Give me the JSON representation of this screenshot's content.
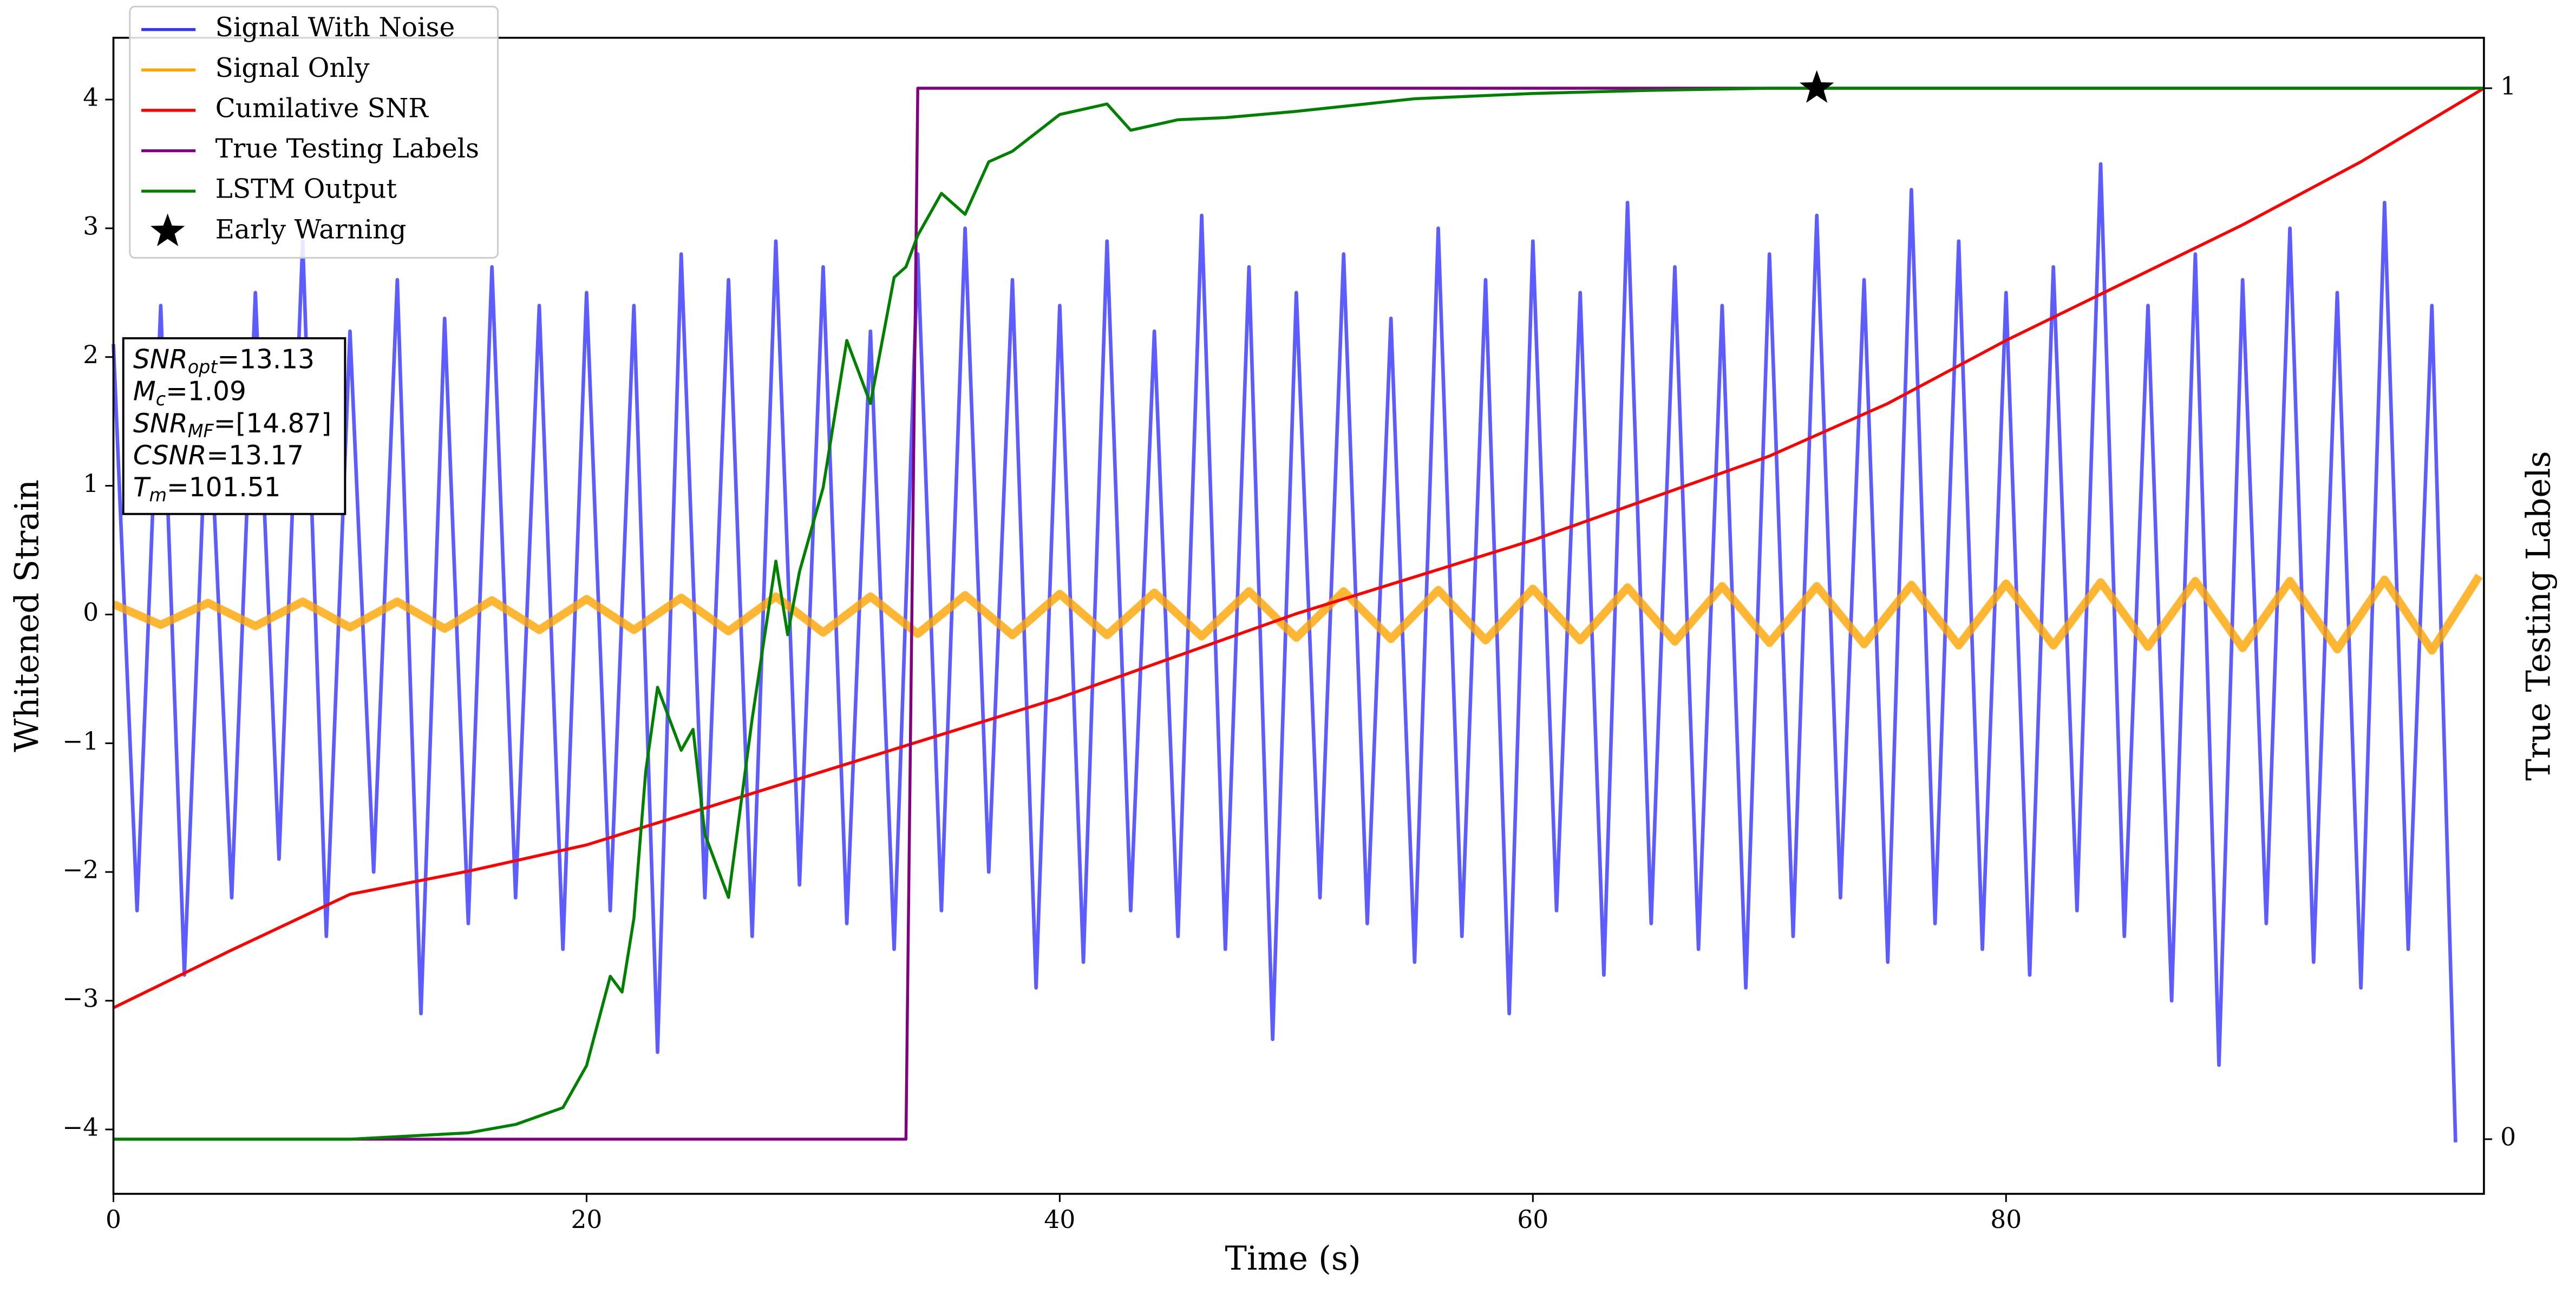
{
  "chart_data": {
    "type": "line",
    "xlabel": "Time (s)",
    "ylabel": "Whitened Strain",
    "y2label": "True Testing Labels",
    "xlim": [
      0,
      100.2
    ],
    "ylim": [
      -4.5,
      4.48
    ],
    "y2lim": [
      -0.052,
      1.048
    ],
    "xticks": [
      0,
      20,
      40,
      60,
      80
    ],
    "yticks": [
      {
        "value": -4,
        "label": "−4"
      },
      {
        "value": -3,
        "label": "−3"
      },
      {
        "value": -2,
        "label": "−2"
      },
      {
        "value": -1,
        "label": "−1"
      },
      0,
      1,
      2,
      3,
      4
    ],
    "y2ticks": [
      0,
      1
    ],
    "legend": "upper left",
    "series": [
      {
        "name": "Signal With Noise",
        "color": "#3333ff",
        "axis": "y",
        "x": [
          0,
          1,
          2,
          3,
          4,
          5,
          6,
          7,
          8,
          9,
          10,
          11,
          12,
          13,
          14,
          15,
          16,
          17,
          18,
          19,
          20,
          21,
          22,
          23,
          24,
          25,
          26,
          27,
          28,
          29,
          30,
          31,
          32,
          33,
          34,
          35,
          36,
          37,
          38,
          39,
          40,
          41,
          42,
          43,
          44,
          45,
          46,
          47,
          48,
          49,
          50,
          51,
          52,
          53,
          54,
          55,
          56,
          57,
          58,
          59,
          60,
          61,
          62,
          63,
          64,
          65,
          66,
          67,
          68,
          69,
          70,
          71,
          72,
          73,
          74,
          75,
          76,
          77,
          78,
          79,
          80,
          81,
          82,
          83,
          84,
          85,
          86,
          87,
          88,
          89,
          90,
          91,
          92,
          93,
          94,
          95,
          96,
          97,
          98,
          99
        ],
        "values": [
          2.1,
          -2.3,
          2.4,
          -2.8,
          1.9,
          -2.2,
          2.5,
          -1.9,
          2.9,
          -2.5,
          2.2,
          -2.0,
          2.6,
          -3.1,
          2.3,
          -2.4,
          2.7,
          -2.2,
          2.4,
          -2.6,
          2.5,
          -2.3,
          2.4,
          -3.4,
          2.8,
          -2.2,
          2.6,
          -2.5,
          2.9,
          -2.1,
          2.7,
          -2.4,
          2.2,
          -2.6,
          2.8,
          -2.3,
          3.0,
          -2.0,
          2.6,
          -2.9,
          2.4,
          -2.7,
          2.9,
          -2.3,
          2.2,
          -2.5,
          3.1,
          -2.6,
          2.7,
          -3.3,
          2.5,
          -2.2,
          2.8,
          -2.4,
          2.3,
          -2.7,
          3.0,
          -2.5,
          2.6,
          -3.1,
          2.9,
          -2.3,
          2.5,
          -2.8,
          3.2,
          -2.4,
          2.7,
          -2.6,
          2.4,
          -2.9,
          2.8,
          -2.5,
          3.1,
          -2.2,
          2.6,
          -2.7,
          3.3,
          -2.4,
          2.9,
          -2.6,
          2.5,
          -2.8,
          2.7,
          -2.3,
          3.5,
          -2.5,
          2.4,
          -3.0,
          2.8,
          -3.5,
          2.6,
          -2.4,
          3.0,
          -2.7,
          2.5,
          -2.9,
          3.2,
          -2.6,
          2.4,
          -4.1
        ]
      },
      {
        "name": "Signal Only",
        "color": "#ffa500",
        "axis": "y",
        "x": [
          0,
          2,
          4,
          6,
          8,
          10,
          12,
          14,
          16,
          18,
          20,
          22,
          24,
          26,
          28,
          30,
          32,
          34,
          36,
          38,
          40,
          42,
          44,
          46,
          48,
          50,
          52,
          54,
          56,
          58,
          60,
          62,
          64,
          66,
          68,
          70,
          72,
          74,
          76,
          78,
          80,
          82,
          84,
          86,
          88,
          90,
          92,
          94,
          96,
          98,
          100
        ],
        "values": [
          0.08,
          -0.08,
          0.09,
          -0.09,
          0.1,
          -0.1,
          0.1,
          -0.11,
          0.11,
          -0.12,
          0.12,
          -0.12,
          0.13,
          -0.13,
          0.14,
          -0.14,
          0.14,
          -0.15,
          0.15,
          -0.16,
          0.16,
          -0.16,
          0.17,
          -0.17,
          0.18,
          -0.18,
          0.18,
          -0.19,
          0.19,
          -0.2,
          0.2,
          -0.2,
          0.21,
          -0.21,
          0.22,
          -0.22,
          0.22,
          -0.23,
          0.23,
          -0.24,
          0.24,
          -0.24,
          0.25,
          -0.25,
          0.26,
          -0.26,
          0.26,
          -0.27,
          0.27,
          -0.28,
          0.3
        ]
      },
      {
        "name": "Cumilative SNR",
        "color": "#ff0000",
        "axis": "y2",
        "x": [
          0,
          5,
          10,
          15,
          20,
          25,
          30,
          35,
          40,
          45,
          50,
          55,
          60,
          65,
          70,
          75,
          80,
          85,
          90,
          95,
          100.2
        ],
        "values": [
          0.125,
          0.18,
          0.233,
          0.255,
          0.28,
          0.315,
          0.35,
          0.385,
          0.42,
          0.46,
          0.5,
          0.535,
          0.57,
          0.61,
          0.65,
          0.7,
          0.76,
          0.815,
          0.87,
          0.93,
          1.0
        ]
      },
      {
        "name": "True Testing Labels",
        "color": "#800080",
        "axis": "y2",
        "x": [
          0,
          33.5,
          34,
          100.2
        ],
        "values": [
          0,
          0,
          1,
          1
        ]
      },
      {
        "name": "LSTM Output",
        "color": "#008000",
        "axis": "y2",
        "x": [
          0,
          10,
          15,
          17,
          19,
          20,
          21,
          21.5,
          22,
          22.5,
          23,
          24,
          24.5,
          25,
          26,
          27,
          28,
          28.5,
          29,
          30,
          31,
          32,
          33,
          33.5,
          34,
          35,
          36,
          37,
          38,
          40,
          42,
          43,
          45,
          47,
          50,
          55,
          60,
          65,
          70,
          100.2
        ],
        "values": [
          0,
          0,
          0.006,
          0.014,
          0.03,
          0.07,
          0.155,
          0.14,
          0.21,
          0.35,
          0.43,
          0.37,
          0.39,
          0.29,
          0.23,
          0.4,
          0.55,
          0.48,
          0.54,
          0.62,
          0.76,
          0.7,
          0.82,
          0.83,
          0.86,
          0.9,
          0.88,
          0.93,
          0.94,
          0.975,
          0.985,
          0.96,
          0.97,
          0.972,
          0.978,
          0.99,
          0.995,
          0.998,
          1.0,
          1.0
        ]
      },
      {
        "name": "Early Warning",
        "color": "#000000",
        "axis": "y2",
        "marker": "star",
        "x": [
          72
        ],
        "values": [
          1.0
        ]
      }
    ],
    "annotation": [
      {
        "math": "SNR",
        "sub": "opt",
        "text": "=13.13"
      },
      {
        "math": "M",
        "sub": "c",
        "text": "=1.09"
      },
      {
        "math": "SNR",
        "sub": "MF",
        "text": "=[14.87]"
      },
      {
        "math": "CSNR",
        "text": "=13.17"
      },
      {
        "math": "T",
        "sub": "m",
        "text": "=101.51"
      }
    ]
  }
}
